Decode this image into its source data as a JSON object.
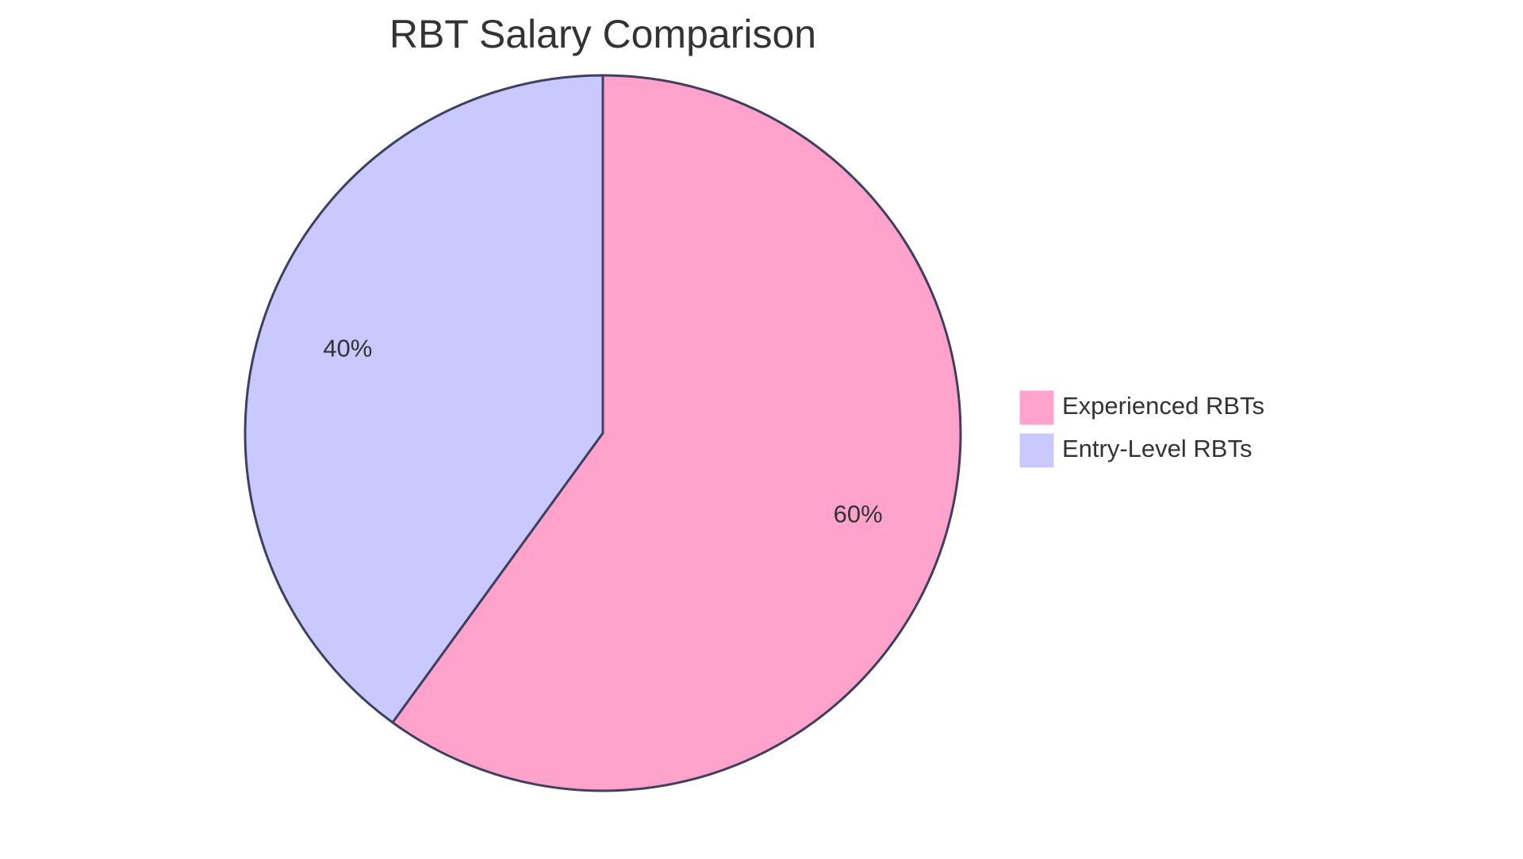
{
  "chart_data": {
    "type": "pie",
    "title": "RBT Salary Comparison",
    "slices": [
      {
        "name": "Experienced RBTs",
        "value": 60,
        "label": "60%",
        "color": "#ffa3cc"
      },
      {
        "name": "Entry-Level RBTs",
        "value": 40,
        "label": "40%",
        "color": "#c9c9ff"
      }
    ],
    "legend": {
      "position": "right",
      "entries": [
        "Experienced RBTs",
        "Entry-Level RBTs"
      ]
    },
    "start_angle_deg": 0,
    "direction": "clockwise",
    "border_color": "#3f3f5f"
  }
}
